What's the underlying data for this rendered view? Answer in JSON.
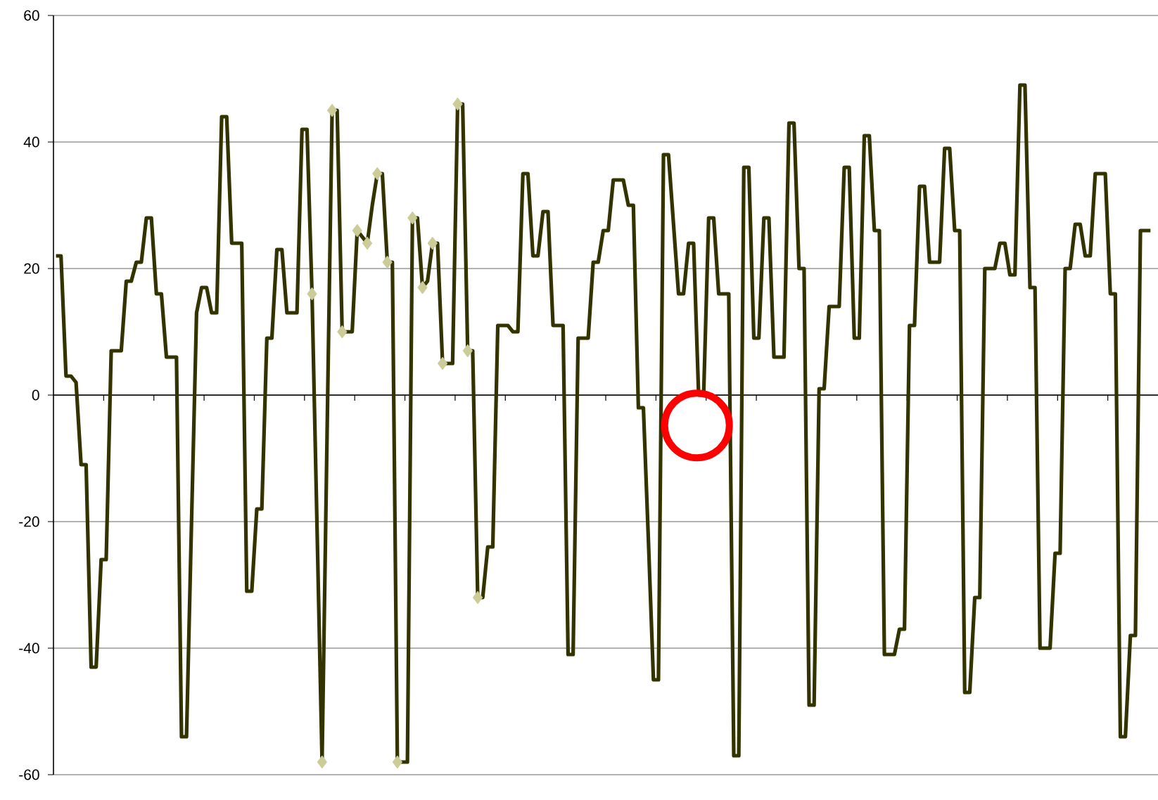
{
  "chart_data": {
    "type": "line",
    "categories": [
      null,
      null,
      null,
      null,
      null,
      null,
      null,
      null,
      null,
      null,
      null,
      null,
      null,
      null,
      null,
      null,
      null,
      null,
      null,
      null,
      null,
      null,
      null,
      null,
      null,
      null,
      null,
      null,
      null,
      null,
      null,
      null,
      null,
      null,
      null,
      null,
      null,
      null,
      null,
      null,
      null,
      null,
      null,
      null,
      null,
      null,
      null,
      null,
      null,
      null,
      null,
      null,
      null,
      null,
      null,
      null,
      null,
      null,
      null,
      null,
      null,
      null,
      null,
      null,
      null,
      null,
      null,
      null,
      null,
      null,
      null,
      null,
      null,
      null,
      null,
      null,
      null,
      null,
      null,
      null,
      null,
      null,
      null,
      null,
      null,
      null,
      null,
      null,
      null,
      null,
      null,
      null,
      null,
      null,
      null,
      null,
      null,
      null,
      null,
      null,
      null,
      null,
      null,
      null,
      null,
      null,
      null,
      null,
      null,
      null,
      null,
      null,
      null,
      null,
      null,
      null,
      null,
      null,
      null,
      null,
      null,
      null,
      null,
      null,
      null,
      null,
      null,
      null,
      null,
      null,
      null,
      null,
      null,
      null,
      null,
      null,
      null,
      null,
      null,
      null,
      null,
      null,
      null,
      null,
      null,
      null,
      null,
      null,
      null,
      null,
      null,
      null,
      null,
      null,
      null,
      null,
      null,
      null,
      null,
      null,
      null,
      null,
      null,
      null,
      null,
      null,
      null,
      null,
      null,
      null,
      null,
      null,
      null,
      null,
      null,
      null,
      null,
      null,
      null,
      null,
      null,
      null,
      null,
      null,
      null,
      null,
      null,
      null,
      null,
      null,
      null,
      null,
      null,
      null,
      null,
      null,
      null,
      null,
      null,
      null,
      null,
      null,
      null,
      null,
      null,
      null,
      null,
      null,
      null,
      null,
      null,
      null,
      null,
      null,
      null,
      null,
      null,
      null,
      null
    ],
    "series": [
      {
        "color": "#333300",
        "values": [
          22,
          22,
          3,
          3,
          2,
          -11,
          -11,
          -43,
          -43,
          -26,
          -26,
          7,
          7,
          7,
          18,
          18,
          21,
          21,
          28,
          28,
          16,
          16,
          6,
          6,
          6,
          -54,
          -54,
          -20,
          13,
          17,
          17,
          13,
          13,
          44,
          44,
          24,
          24,
          24,
          -31,
          -31,
          -18,
          -18,
          9,
          9,
          23,
          23,
          13,
          13,
          13,
          42,
          42,
          16,
          -21,
          -58,
          -6,
          45,
          45,
          10,
          10,
          10,
          26,
          25,
          24,
          30,
          35,
          35,
          21,
          21,
          -58,
          -58,
          -58,
          28,
          28,
          17,
          18,
          24,
          24,
          5,
          5,
          5,
          46,
          46,
          7,
          7,
          -32,
          -32,
          -24,
          -24,
          11,
          11,
          11,
          10,
          10,
          35,
          35,
          22,
          22,
          29,
          29,
          11,
          11,
          11,
          -41,
          -41,
          9,
          9,
          9,
          21,
          21,
          26,
          26,
          34,
          34,
          34,
          30,
          30,
          -2,
          -2,
          -23,
          -45,
          -45,
          38,
          38,
          27,
          16,
          16,
          24,
          24,
          0,
          0,
          28,
          28,
          16,
          16,
          16,
          -57,
          -57,
          36,
          36,
          9,
          9,
          28,
          28,
          6,
          6,
          6,
          43,
          43,
          20,
          20,
          -49,
          -49,
          1,
          1,
          14,
          14,
          14,
          36,
          36,
          9,
          9,
          41,
          41,
          26,
          26,
          -41,
          -41,
          -41,
          -37,
          -37,
          11,
          11,
          33,
          33,
          21,
          21,
          21,
          39,
          39,
          26,
          26,
          -47,
          -47,
          -32,
          -32,
          20,
          20,
          20,
          24,
          24,
          19,
          19,
          49,
          49,
          17,
          17,
          -40,
          -40,
          -40,
          -25,
          -25,
          20,
          20,
          27,
          27,
          22,
          22,
          35,
          35,
          35,
          16,
          16,
          -54,
          -54,
          -38,
          -38,
          26,
          26,
          26
        ]
      },
      {
        "type": "scatter",
        "color": "#cccc99",
        "marker": "diamond",
        "values": [
          null,
          null,
          null,
          null,
          null,
          null,
          null,
          null,
          null,
          null,
          null,
          null,
          null,
          null,
          null,
          null,
          null,
          null,
          null,
          null,
          null,
          null,
          null,
          null,
          null,
          null,
          null,
          null,
          null,
          null,
          null,
          null,
          null,
          null,
          null,
          null,
          null,
          null,
          null,
          null,
          null,
          null,
          null,
          null,
          null,
          null,
          null,
          null,
          null,
          null,
          null,
          16,
          null,
          -58,
          null,
          45,
          null,
          10,
          null,
          null,
          26,
          null,
          24,
          null,
          35,
          null,
          21,
          null,
          -58,
          null,
          null,
          28,
          null,
          17,
          null,
          24,
          null,
          5,
          null,
          null,
          46,
          null,
          7,
          null,
          -32,
          null,
          null,
          null,
          null,
          null,
          null,
          null,
          null,
          null,
          null,
          null,
          null,
          null,
          null,
          null,
          null,
          null,
          null,
          null,
          null,
          null,
          null,
          null,
          null,
          null,
          null,
          null,
          null,
          null,
          null,
          null,
          null,
          null,
          null,
          null,
          null,
          null,
          null,
          null,
          null,
          null,
          null,
          null,
          null,
          null,
          null,
          null,
          null,
          null,
          null,
          null,
          null,
          null,
          null,
          null,
          null,
          null,
          null,
          null,
          null,
          null,
          null,
          null,
          null,
          null,
          null,
          null,
          null,
          null,
          null,
          null,
          null,
          null,
          null,
          null,
          null,
          null,
          null,
          null,
          null,
          null,
          null,
          null,
          null,
          null,
          null,
          null,
          null,
          null,
          null,
          null,
          null,
          null,
          null,
          null,
          null,
          null,
          null,
          null,
          null,
          null,
          null,
          null,
          null,
          null,
          null,
          null,
          null,
          null,
          null,
          null,
          null,
          null,
          null,
          null,
          null,
          null,
          null,
          null,
          null,
          null,
          null,
          null,
          null,
          null,
          null,
          null,
          null,
          null,
          null,
          null,
          null,
          null,
          null
        ]
      }
    ],
    "ylim": [
      -60,
      60
    ],
    "yticks": [
      -60,
      -40,
      -20,
      0,
      20,
      40,
      60
    ],
    "grid": "y"
  }
}
